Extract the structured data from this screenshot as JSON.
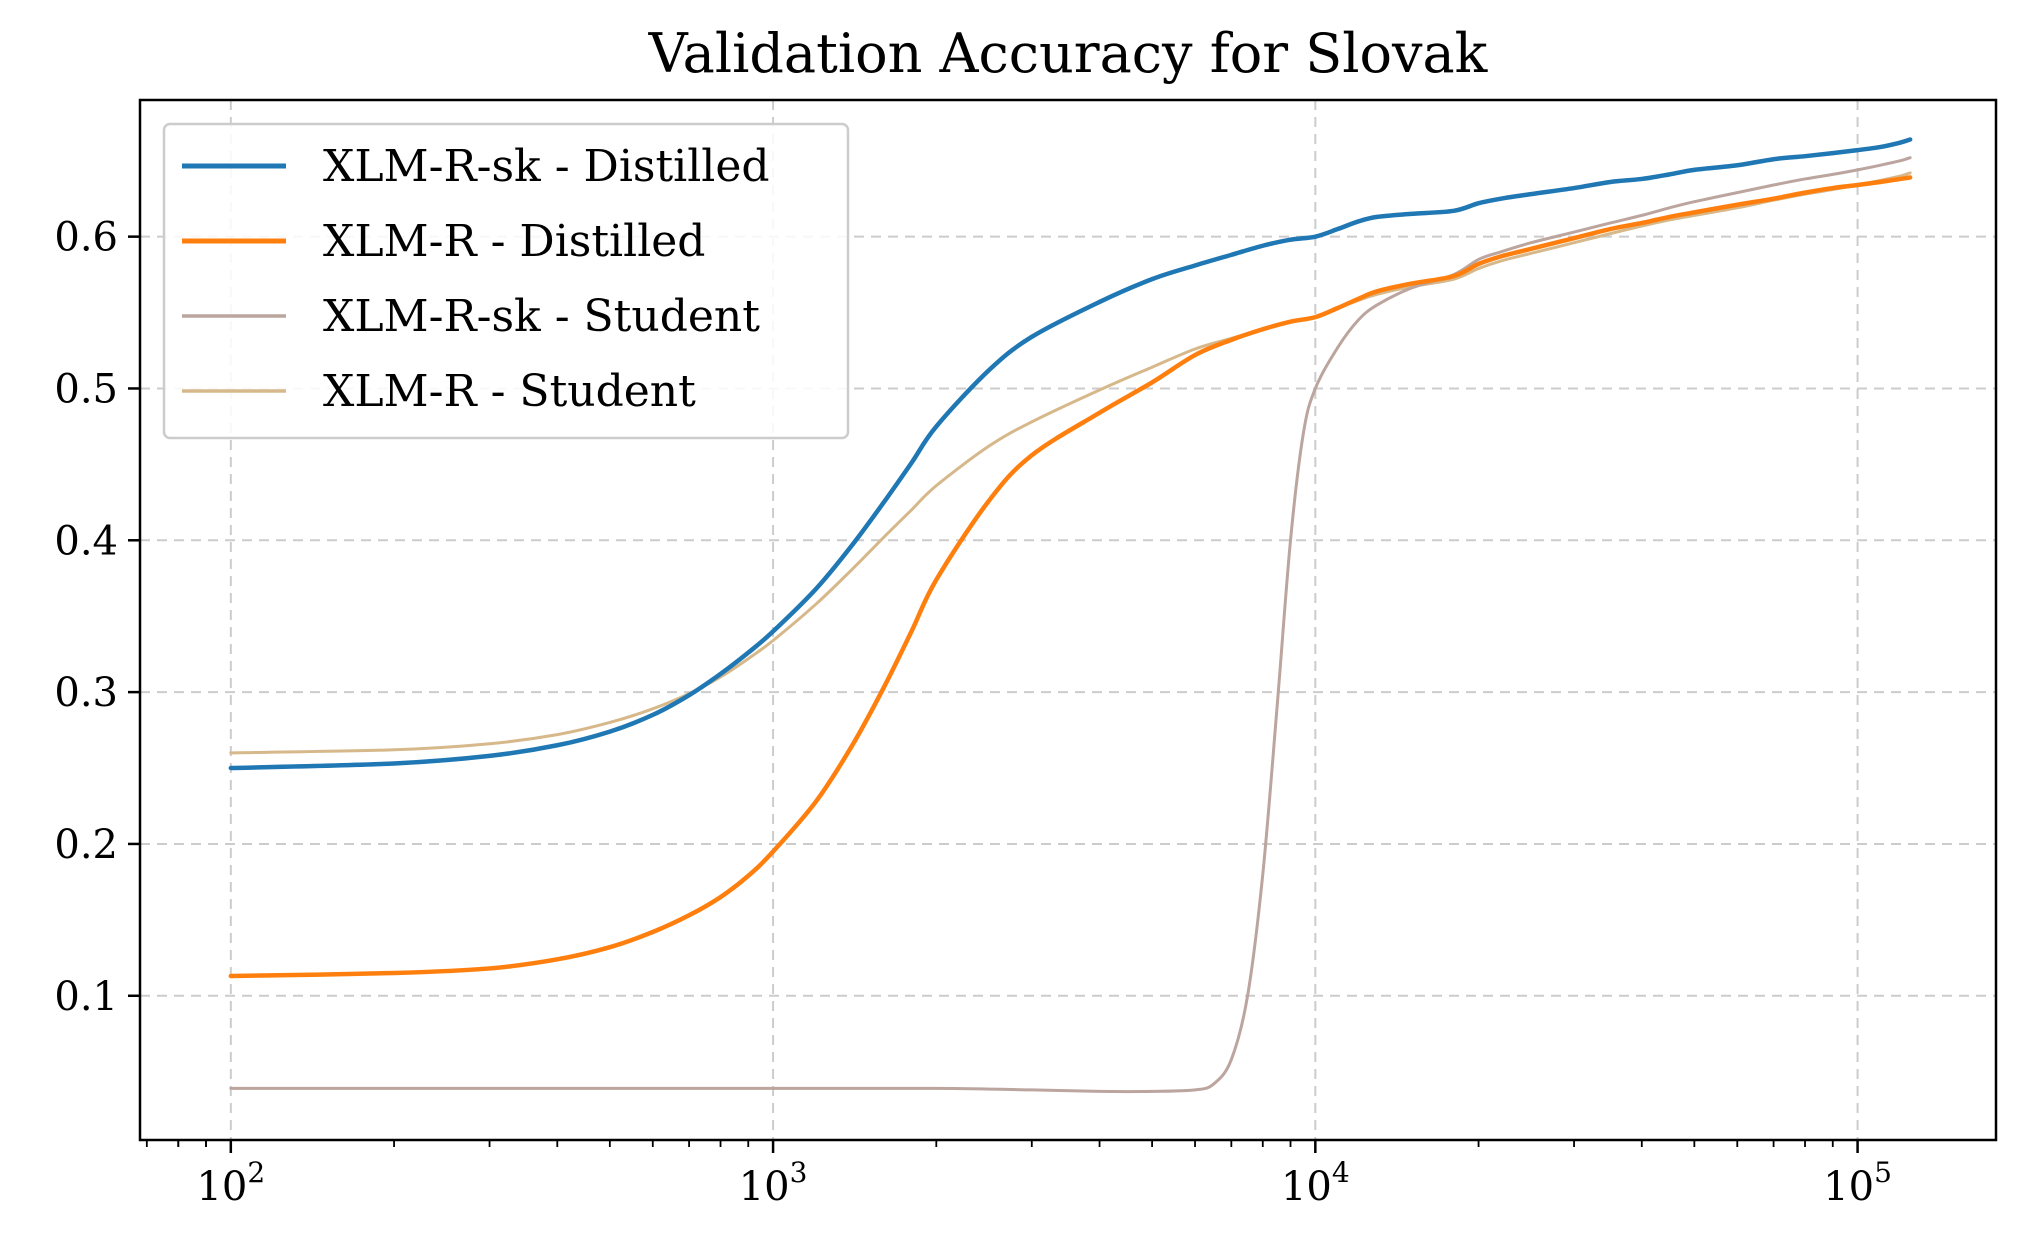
{
  "chart_data": {
    "type": "line",
    "title": "Validation Accuracy for Slovak",
    "xlabel": "",
    "ylabel": "",
    "xscale": "log",
    "xlim": [
      68,
      180000
    ],
    "ylim": [
      0.005,
      0.69
    ],
    "grid": true,
    "legend_position": "top-left",
    "x_ticks": [
      {
        "base": "10",
        "exp": "2",
        "value": 100
      },
      {
        "base": "10",
        "exp": "3",
        "value": 1000
      },
      {
        "base": "10",
        "exp": "4",
        "value": 10000
      },
      {
        "base": "10",
        "exp": "5",
        "value": 100000
      }
    ],
    "y_ticks": [
      {
        "label": "0.1",
        "value": 0.1
      },
      {
        "label": "0.2",
        "value": 0.2
      },
      {
        "label": "0.3",
        "value": 0.3
      },
      {
        "label": "0.4",
        "value": 0.4
      },
      {
        "label": "0.5",
        "value": 0.5
      },
      {
        "label": "0.6",
        "value": 0.6
      }
    ],
    "series": [
      {
        "name": "XLM-R-sk - Distilled",
        "color": "#1f77b4",
        "width": 4.5,
        "x": [
          100,
          200,
          300,
          400,
          500,
          600,
          700,
          800,
          900,
          1000,
          1200,
          1400,
          1600,
          1800,
          2000,
          2500,
          3000,
          4000,
          5000,
          6000,
          7000,
          8000,
          9000,
          10000,
          11000,
          12000,
          13000,
          15000,
          18000,
          20000,
          22000,
          25000,
          30000,
          35000,
          40000,
          45000,
          50000,
          60000,
          70000,
          80000,
          90000,
          100000,
          110000,
          120000,
          125000
        ],
        "values": [
          0.25,
          0.253,
          0.258,
          0.265,
          0.274,
          0.285,
          0.298,
          0.312,
          0.326,
          0.34,
          0.368,
          0.397,
          0.425,
          0.451,
          0.475,
          0.512,
          0.534,
          0.557,
          0.572,
          0.581,
          0.588,
          0.594,
          0.598,
          0.6,
          0.605,
          0.61,
          0.613,
          0.615,
          0.617,
          0.622,
          0.625,
          0.628,
          0.632,
          0.636,
          0.638,
          0.641,
          0.644,
          0.647,
          0.651,
          0.653,
          0.655,
          0.657,
          0.659,
          0.662,
          0.664
        ]
      },
      {
        "name": "XLM-R - Distilled",
        "color": "#ff7f0e",
        "width": 4.5,
        "x": [
          100,
          200,
          300,
          400,
          500,
          600,
          700,
          800,
          900,
          1000,
          1200,
          1400,
          1600,
          1800,
          2000,
          2500,
          3000,
          4000,
          5000,
          6000,
          7000,
          8000,
          9000,
          10000,
          11000,
          12000,
          13000,
          15000,
          18000,
          20000,
          22000,
          25000,
          30000,
          35000,
          40000,
          45000,
          50000,
          60000,
          70000,
          80000,
          90000,
          100000,
          110000,
          120000,
          125000
        ],
        "values": [
          0.113,
          0.115,
          0.118,
          0.124,
          0.132,
          0.142,
          0.153,
          0.165,
          0.179,
          0.195,
          0.228,
          0.265,
          0.303,
          0.34,
          0.374,
          0.426,
          0.456,
          0.484,
          0.504,
          0.522,
          0.532,
          0.539,
          0.544,
          0.547,
          0.553,
          0.559,
          0.564,
          0.569,
          0.574,
          0.582,
          0.587,
          0.592,
          0.599,
          0.605,
          0.609,
          0.613,
          0.616,
          0.621,
          0.625,
          0.629,
          0.632,
          0.634,
          0.636,
          0.638,
          0.639
        ]
      },
      {
        "name": "XLM-R-sk - Student",
        "color": "#bba59e",
        "width": 3,
        "x": [
          100,
          200,
          500,
          1000,
          2000,
          3000,
          4000,
          5000,
          6000,
          6500,
          7000,
          7500,
          8000,
          8500,
          9000,
          9500,
          10000,
          11000,
          12000,
          13000,
          15000,
          18000,
          20000,
          22000,
          25000,
          30000,
          35000,
          40000,
          45000,
          50000,
          60000,
          70000,
          80000,
          90000,
          100000,
          110000,
          120000,
          125000
        ],
        "values": [
          0.039,
          0.039,
          0.039,
          0.039,
          0.039,
          0.038,
          0.037,
          0.037,
          0.038,
          0.042,
          0.058,
          0.1,
          0.18,
          0.29,
          0.4,
          0.47,
          0.5,
          0.527,
          0.545,
          0.555,
          0.566,
          0.575,
          0.585,
          0.59,
          0.596,
          0.603,
          0.609,
          0.614,
          0.619,
          0.623,
          0.629,
          0.634,
          0.638,
          0.641,
          0.644,
          0.647,
          0.65,
          0.652
        ]
      },
      {
        "name": "XLM-R - Student",
        "color": "#d6b88a",
        "width": 3,
        "x": [
          100,
          200,
          300,
          400,
          500,
          600,
          700,
          800,
          900,
          1000,
          1200,
          1400,
          1600,
          1800,
          2000,
          2500,
          3000,
          4000,
          5000,
          6000,
          7000,
          8000,
          9000,
          10000,
          11000,
          12000,
          13000,
          15000,
          18000,
          20000,
          22000,
          25000,
          30000,
          35000,
          40000,
          45000,
          50000,
          60000,
          70000,
          80000,
          90000,
          100000,
          110000,
          120000,
          125000
        ],
        "values": [
          0.26,
          0.262,
          0.266,
          0.272,
          0.28,
          0.289,
          0.299,
          0.31,
          0.322,
          0.334,
          0.358,
          0.381,
          0.402,
          0.42,
          0.436,
          0.462,
          0.478,
          0.499,
          0.514,
          0.526,
          0.533,
          0.539,
          0.544,
          0.547,
          0.553,
          0.558,
          0.562,
          0.567,
          0.572,
          0.579,
          0.584,
          0.589,
          0.596,
          0.602,
          0.607,
          0.611,
          0.614,
          0.619,
          0.624,
          0.628,
          0.631,
          0.634,
          0.637,
          0.64,
          0.642
        ]
      }
    ]
  }
}
